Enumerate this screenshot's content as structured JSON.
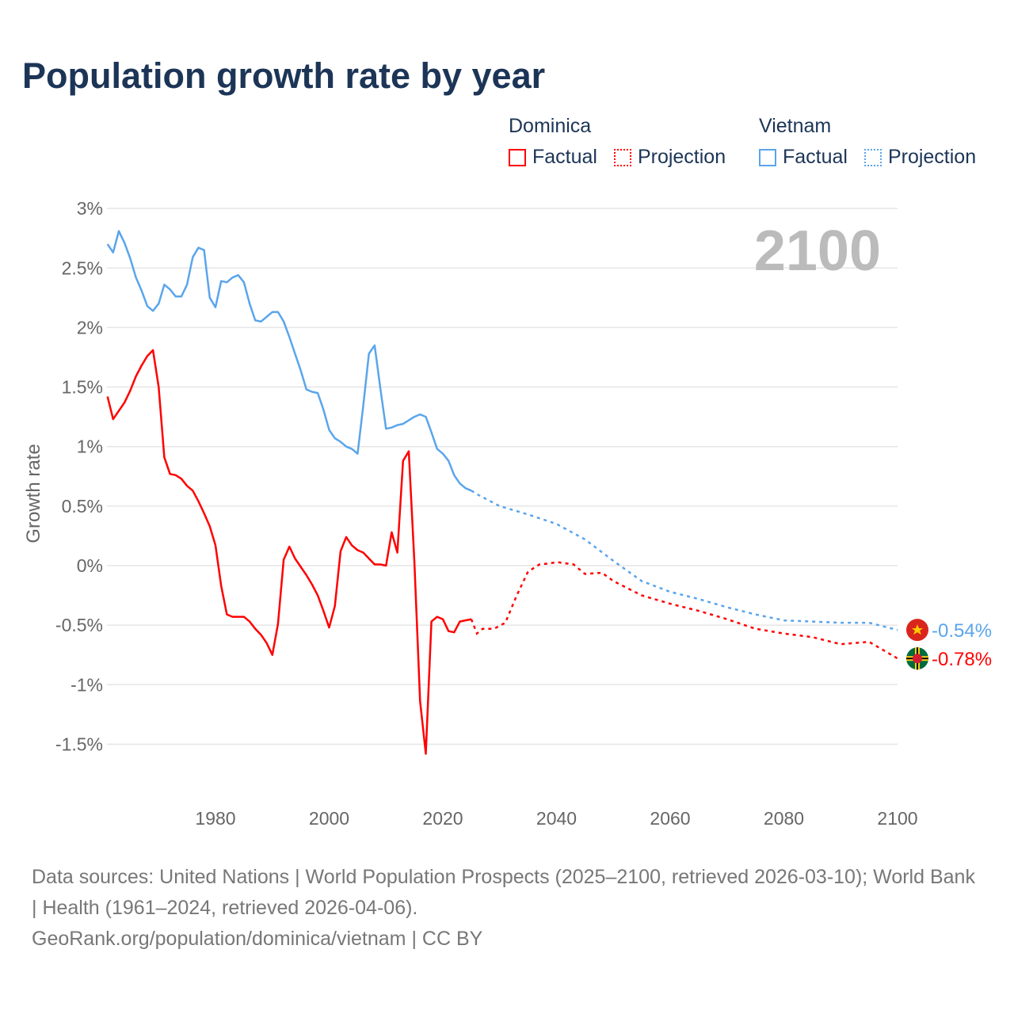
{
  "title": "Population growth rate by year",
  "legend": [
    {
      "group": "Dominica",
      "factual": "Factual",
      "projection": "Projection",
      "color": "#ff0000"
    },
    {
      "group": "Vietnam",
      "factual": "Factual",
      "projection": "Projection",
      "color": "#5aa5ec"
    }
  ],
  "year_label": "2100",
  "footer": {
    "sources": "Data sources: United Nations | World Population Prospects (2025–2100, retrieved 2026-03-10); World Bank | Health (1961–2024, retrieved 2026-04-06).",
    "link": "GeoRank.org/population/dominica/vietnam | CC BY"
  },
  "chart_data": {
    "type": "line",
    "title": "Population growth rate by year",
    "xlabel": "",
    "ylabel": "Growth rate",
    "xlim": [
      1961,
      2100
    ],
    "ylim": [
      -1.8,
      3.0
    ],
    "xticks": [
      1980,
      2000,
      2020,
      2040,
      2060,
      2080,
      2100
    ],
    "xtick_labels": [
      "1980",
      "2000",
      "2020",
      "2040",
      "2060",
      "2080",
      "2100"
    ],
    "yticks": [
      3,
      2.5,
      2,
      1.5,
      1,
      0.5,
      0,
      -0.5,
      -1,
      -1.5
    ],
    "ytick_labels": [
      "3%",
      "2.5%",
      "2%",
      "1.5%",
      "1%",
      "0.5%",
      "0%",
      "-0.5%",
      "-1%",
      "-1.5%"
    ],
    "grid": true,
    "legend_position": "top-right",
    "series": [
      {
        "name": "Vietnam",
        "color": "#5aa5ec",
        "end_label": "-0.54%",
        "factual": {
          "x": [
            1961,
            1962,
            1963,
            1964,
            1965,
            1966,
            1967,
            1968,
            1969,
            1970,
            1971,
            1972,
            1973,
            1974,
            1975,
            1976,
            1977,
            1978,
            1979,
            1980,
            1981,
            1982,
            1983,
            1984,
            1985,
            1986,
            1987,
            1988,
            1989,
            1990,
            1991,
            1992,
            1993,
            1994,
            1995,
            1996,
            1997,
            1998,
            1999,
            2000,
            2001,
            2002,
            2003,
            2004,
            2005,
            2006,
            2007,
            2008,
            2009,
            2010,
            2011,
            2012,
            2013,
            2014,
            2015,
            2016,
            2017,
            2018,
            2019,
            2020,
            2021,
            2022,
            2023,
            2024,
            2025
          ],
          "y": [
            2.7,
            2.63,
            2.81,
            2.71,
            2.58,
            2.42,
            2.31,
            2.18,
            2.14,
            2.2,
            2.36,
            2.32,
            2.26,
            2.26,
            2.36,
            2.59,
            2.67,
            2.65,
            2.25,
            2.17,
            2.39,
            2.38,
            2.42,
            2.44,
            2.38,
            2.2,
            2.06,
            2.05,
            2.09,
            2.13,
            2.13,
            2.05,
            1.92,
            1.78,
            1.64,
            1.48,
            1.46,
            1.45,
            1.31,
            1.14,
            1.07,
            1.04,
            1.0,
            0.98,
            0.94,
            1.34,
            1.78,
            1.85,
            1.49,
            1.15,
            1.16,
            1.18,
            1.19,
            1.22,
            1.25,
            1.27,
            1.25,
            1.12,
            0.98,
            0.94,
            0.88,
            0.76,
            0.69,
            0.65,
            0.63
          ]
        },
        "projection": {
          "x": [
            2025,
            2026,
            2028,
            2030,
            2035,
            2040,
            2045,
            2050,
            2055,
            2060,
            2065,
            2070,
            2075,
            2080,
            2085,
            2090,
            2095,
            2100
          ],
          "y": [
            0.63,
            0.6,
            0.55,
            0.5,
            0.43,
            0.35,
            0.22,
            0.04,
            -0.13,
            -0.22,
            -0.28,
            -0.35,
            -0.41,
            -0.46,
            -0.47,
            -0.48,
            -0.48,
            -0.54
          ]
        }
      },
      {
        "name": "Dominica",
        "color": "#ff0000",
        "end_label": "-0.78%",
        "factual": {
          "x": [
            1961,
            1962,
            1963,
            1964,
            1965,
            1966,
            1967,
            1968,
            1969,
            1970,
            1971,
            1972,
            1973,
            1974,
            1975,
            1976,
            1977,
            1978,
            1979,
            1980,
            1981,
            1982,
            1983,
            1984,
            1985,
            1986,
            1987,
            1988,
            1989,
            1990,
            1991,
            1992,
            1993,
            1994,
            1995,
            1996,
            1997,
            1998,
            1999,
            2000,
            2001,
            2002,
            2003,
            2004,
            2005,
            2006,
            2007,
            2008,
            2009,
            2010,
            2011,
            2012,
            2013,
            2014,
            2015,
            2016,
            2017,
            2018,
            2019,
            2020,
            2021,
            2022,
            2023,
            2024,
            2025
          ],
          "y": [
            1.42,
            1.23,
            1.3,
            1.37,
            1.47,
            1.59,
            1.68,
            1.76,
            1.81,
            1.5,
            0.91,
            0.77,
            0.76,
            0.73,
            0.67,
            0.63,
            0.54,
            0.44,
            0.33,
            0.17,
            -0.17,
            -0.41,
            -0.43,
            -0.43,
            -0.43,
            -0.47,
            -0.53,
            -0.58,
            -0.65,
            -0.75,
            -0.49,
            0.05,
            0.16,
            0.06,
            -0.01,
            -0.08,
            -0.16,
            -0.25,
            -0.38,
            -0.52,
            -0.34,
            0.12,
            0.24,
            0.17,
            0.13,
            0.11,
            0.06,
            0.01,
            0.01,
            0.0,
            0.28,
            0.11,
            0.88,
            0.96,
            0.03,
            -1.14,
            -1.58,
            -0.47,
            -0.43,
            -0.45,
            -0.55,
            -0.56,
            -0.47,
            -0.46,
            -0.45
          ]
        },
        "projection": {
          "x": [
            2025,
            2026,
            2027,
            2029,
            2031,
            2033,
            2035,
            2037,
            2039,
            2040,
            2043,
            2045,
            2048,
            2050,
            2055,
            2060,
            2065,
            2070,
            2075,
            2080,
            2085,
            2090,
            2095,
            2100
          ],
          "y": [
            -0.45,
            -0.57,
            -0.53,
            -0.53,
            -0.48,
            -0.25,
            -0.05,
            0.01,
            0.02,
            0.03,
            0.01,
            -0.07,
            -0.06,
            -0.13,
            -0.25,
            -0.32,
            -0.38,
            -0.45,
            -0.53,
            -0.57,
            -0.6,
            -0.66,
            -0.64,
            -0.78
          ]
        }
      }
    ]
  }
}
